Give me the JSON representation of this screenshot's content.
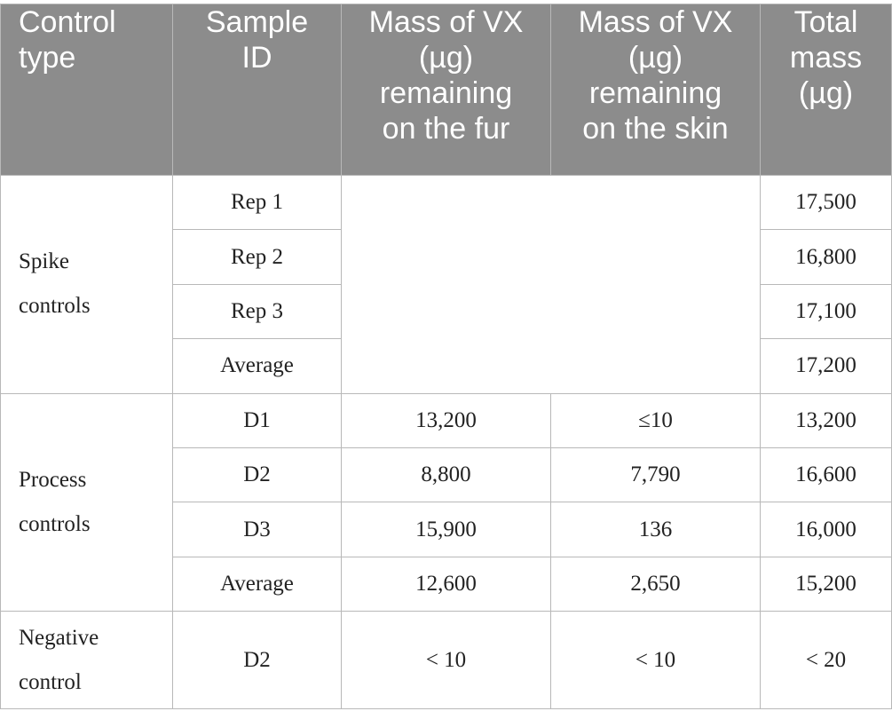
{
  "headers": {
    "control_type": [
      "Control",
      "type"
    ],
    "sample_id": [
      "Sample",
      "ID"
    ],
    "fur": [
      "Mass of VX",
      "(µg)",
      "remaining",
      "on the fur"
    ],
    "skin": [
      "Mass of VX",
      "(µg)",
      "remaining",
      "on the skin"
    ],
    "total": [
      "Total",
      "mass",
      "(µg)"
    ]
  },
  "groups": {
    "spike": [
      "Spike",
      "controls"
    ],
    "process": [
      "Process",
      "controls"
    ],
    "negative": [
      "Negative",
      "control"
    ]
  },
  "rows": {
    "spike": [
      {
        "id": "Rep 1",
        "total": "17,500"
      },
      {
        "id": "Rep 2",
        "total": "16,800"
      },
      {
        "id": "Rep 3",
        "total": "17,100"
      },
      {
        "id": "Average",
        "total": "17,200"
      }
    ],
    "process": [
      {
        "id": "D1",
        "fur": "13,200",
        "skin": "≤10",
        "total": "13,200"
      },
      {
        "id": "D2",
        "fur": "8,800",
        "skin": "7,790",
        "total": "16,600"
      },
      {
        "id": "D3",
        "fur": "15,900",
        "skin": "136",
        "total": "16,000"
      },
      {
        "id": "Average",
        "fur": "12,600",
        "skin": "2,650",
        "total": "15,200"
      }
    ],
    "negative": [
      {
        "id": "D2",
        "fur": "< 10",
        "skin": "< 10",
        "total": "< 20"
      }
    ]
  }
}
